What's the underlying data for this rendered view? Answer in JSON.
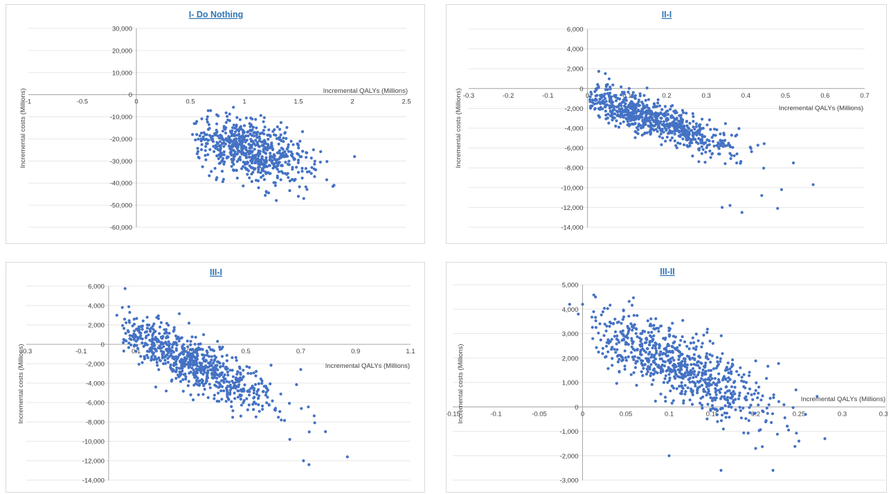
{
  "chart_data": [
    {
      "type": "scatter",
      "title": "I- Do Nothing",
      "xlabel": "Incremental QALYs (Millions)",
      "ylabel": "Incremental costs (Millions)",
      "xlim": [
        -1,
        2.5
      ],
      "ylim": [
        -60000,
        30000
      ],
      "xticks": [
        -1,
        -0.5,
        0,
        0.5,
        1,
        1.5,
        2,
        2.5
      ],
      "xtick_labels": [
        "-1",
        "-0.5",
        "0",
        "0.5",
        "1",
        "1.5",
        "2",
        "2.5"
      ],
      "yticks": [
        -60000,
        -50000,
        -40000,
        -30000,
        -20000,
        -10000,
        0,
        10000,
        20000,
        30000
      ],
      "ytick_labels": [
        "-60,000",
        "-50,000",
        "-40,000",
        "-30,000",
        "-20,000",
        "-10,000",
        "0",
        "10,000",
        "20,000",
        "30,000"
      ],
      "grid": true,
      "point_color": "#4472c4",
      "cloud": {
        "n": 650,
        "x_mean": 1.05,
        "x_sd": 0.28,
        "y_mean": -25000,
        "y_sd": 6500,
        "slope": -10000,
        "x_min": 0.5,
        "x_max": 1.9
      },
      "points": [
        [
          0.52,
          -18000
        ],
        [
          0.55,
          -13000
        ],
        [
          1.0,
          -14000
        ],
        [
          1.5,
          -46000
        ],
        [
          1.55,
          -47000
        ],
        [
          1.83,
          -41000
        ],
        [
          1.82,
          -41500
        ],
        [
          2.02,
          -28000
        ],
        [
          0.74,
          -38500
        ]
      ]
    },
    {
      "type": "scatter",
      "title": "II-I",
      "xlabel": "Incremental QALYs (Millions)",
      "ylabel": "Incremental costs (Millions)",
      "xlim": [
        -0.3,
        0.7
      ],
      "ylim": [
        -14000,
        6000
      ],
      "xticks": [
        -0.3,
        -0.2,
        -0.1,
        0,
        0.1,
        0.2,
        0.3,
        0.4,
        0.5,
        0.6,
        0.7
      ],
      "xtick_labels": [
        "-0.3",
        "-0.2",
        "-0.1",
        "0",
        "0.1",
        "0.2",
        "0.3",
        "0.4",
        "0.5",
        "0.6",
        "0.7"
      ],
      "yticks": [
        -14000,
        -12000,
        -10000,
        -8000,
        -6000,
        -4000,
        -2000,
        0,
        2000,
        4000,
        6000
      ],
      "ytick_labels": [
        "-14,000",
        "-12,000",
        "-10,000",
        "-8,000",
        "-6,000",
        "-4,000",
        "-2,000",
        "0",
        "2,000",
        "4,000",
        "6,000"
      ],
      "grid": true,
      "point_color": "#4472c4",
      "cloud": {
        "n": 750,
        "x_mean": 0.16,
        "x_sd": 0.11,
        "y_mean": -3000,
        "y_sd": 900,
        "slope": -14500,
        "x_min": 0.005,
        "x_max": 0.5
      },
      "points": [
        [
          0.34,
          -12000
        ],
        [
          0.36,
          -11800
        ],
        [
          0.39,
          -12500
        ],
        [
          0.48,
          -12100
        ],
        [
          0.57,
          -9700
        ],
        [
          0.52,
          -7500
        ],
        [
          0.49,
          -10200
        ],
        [
          0.44,
          -10800
        ]
      ]
    },
    {
      "type": "scatter",
      "title": "III-I",
      "xlabel": "Incremental QALYs (Millions)",
      "ylabel": "Incremental costs (Millions)",
      "xlim": [
        -0.3,
        1.1
      ],
      "ylim": [
        -14000,
        6000
      ],
      "xticks": [
        -0.3,
        -0.1,
        0.1,
        0.3,
        0.5,
        0.7,
        0.9,
        1.1
      ],
      "xtick_labels": [
        "-0.3",
        "-0.1",
        "0.1",
        "0.3",
        "0.5",
        "0.7",
        "0.9",
        "1.1"
      ],
      "yticks": [
        -14000,
        -12000,
        -10000,
        -8000,
        -6000,
        -4000,
        -2000,
        0,
        2000,
        4000,
        6000
      ],
      "ytick_labels": [
        "-14,000",
        "-12,000",
        "-10,000",
        "-8,000",
        "-6,000",
        "-4,000",
        "-2,000",
        "0",
        "2,000",
        "4,000",
        "6,000"
      ],
      "grid": true,
      "point_color": "#4472c4",
      "cloud": {
        "n": 750,
        "x_mean": 0.3,
        "x_sd": 0.16,
        "y_mean": -1800,
        "y_sd": 1300,
        "slope": -14000,
        "x_min": 0.05,
        "x_max": 0.8
      },
      "points": [
        [
          0.03,
          3000
        ],
        [
          0.05,
          3800
        ],
        [
          0.71,
          -12000
        ],
        [
          0.73,
          -12400
        ],
        [
          0.87,
          -11600
        ],
        [
          0.79,
          -9000
        ],
        [
          0.7,
          -2600
        ],
        [
          0.66,
          -9800
        ]
      ]
    },
    {
      "type": "scatter",
      "title": "III-II",
      "xlabel": "Incremental QALYs (Millions)",
      "ylabel": "Incremental costs (Millions)",
      "xlim": [
        -0.15,
        0.35
      ],
      "ylim": [
        -3000,
        5000
      ],
      "xticks": [
        -0.15,
        -0.1,
        -0.05,
        0,
        0.05,
        0.1,
        0.15,
        0.2,
        0.25,
        0.3,
        0.35
      ],
      "xtick_labels": [
        "-0.15",
        "-0.1",
        "-0.05",
        "0",
        "0.05",
        "0.1",
        "0.15",
        "0.2",
        "0.25",
        "0.3",
        "0.35"
      ],
      "yticks": [
        -3000,
        -2000,
        -1000,
        0,
        1000,
        2000,
        3000,
        4000,
        5000
      ],
      "ytick_labels": [
        "-3,000",
        "-2,000",
        "-1,000",
        "0",
        "1,000",
        "2,000",
        "3,000",
        "4,000",
        "5,000"
      ],
      "grid": true,
      "point_color": "#4472c4",
      "cloud": {
        "n": 750,
        "x_mean": 0.11,
        "x_sd": 0.055,
        "y_mean": 1700,
        "y_sd": 700,
        "slope": -16000,
        "x_min": 0.01,
        "x_max": 0.28
      },
      "points": [
        [
          -0.015,
          4200
        ],
        [
          -0.005,
          3800
        ],
        [
          0.0,
          4200
        ],
        [
          0.015,
          4500
        ],
        [
          0.1,
          -2000
        ],
        [
          0.16,
          -2600
        ],
        [
          0.22,
          -2600
        ],
        [
          0.28,
          -1300
        ],
        [
          0.25,
          -1400
        ],
        [
          0.2,
          -1700
        ]
      ]
    }
  ]
}
